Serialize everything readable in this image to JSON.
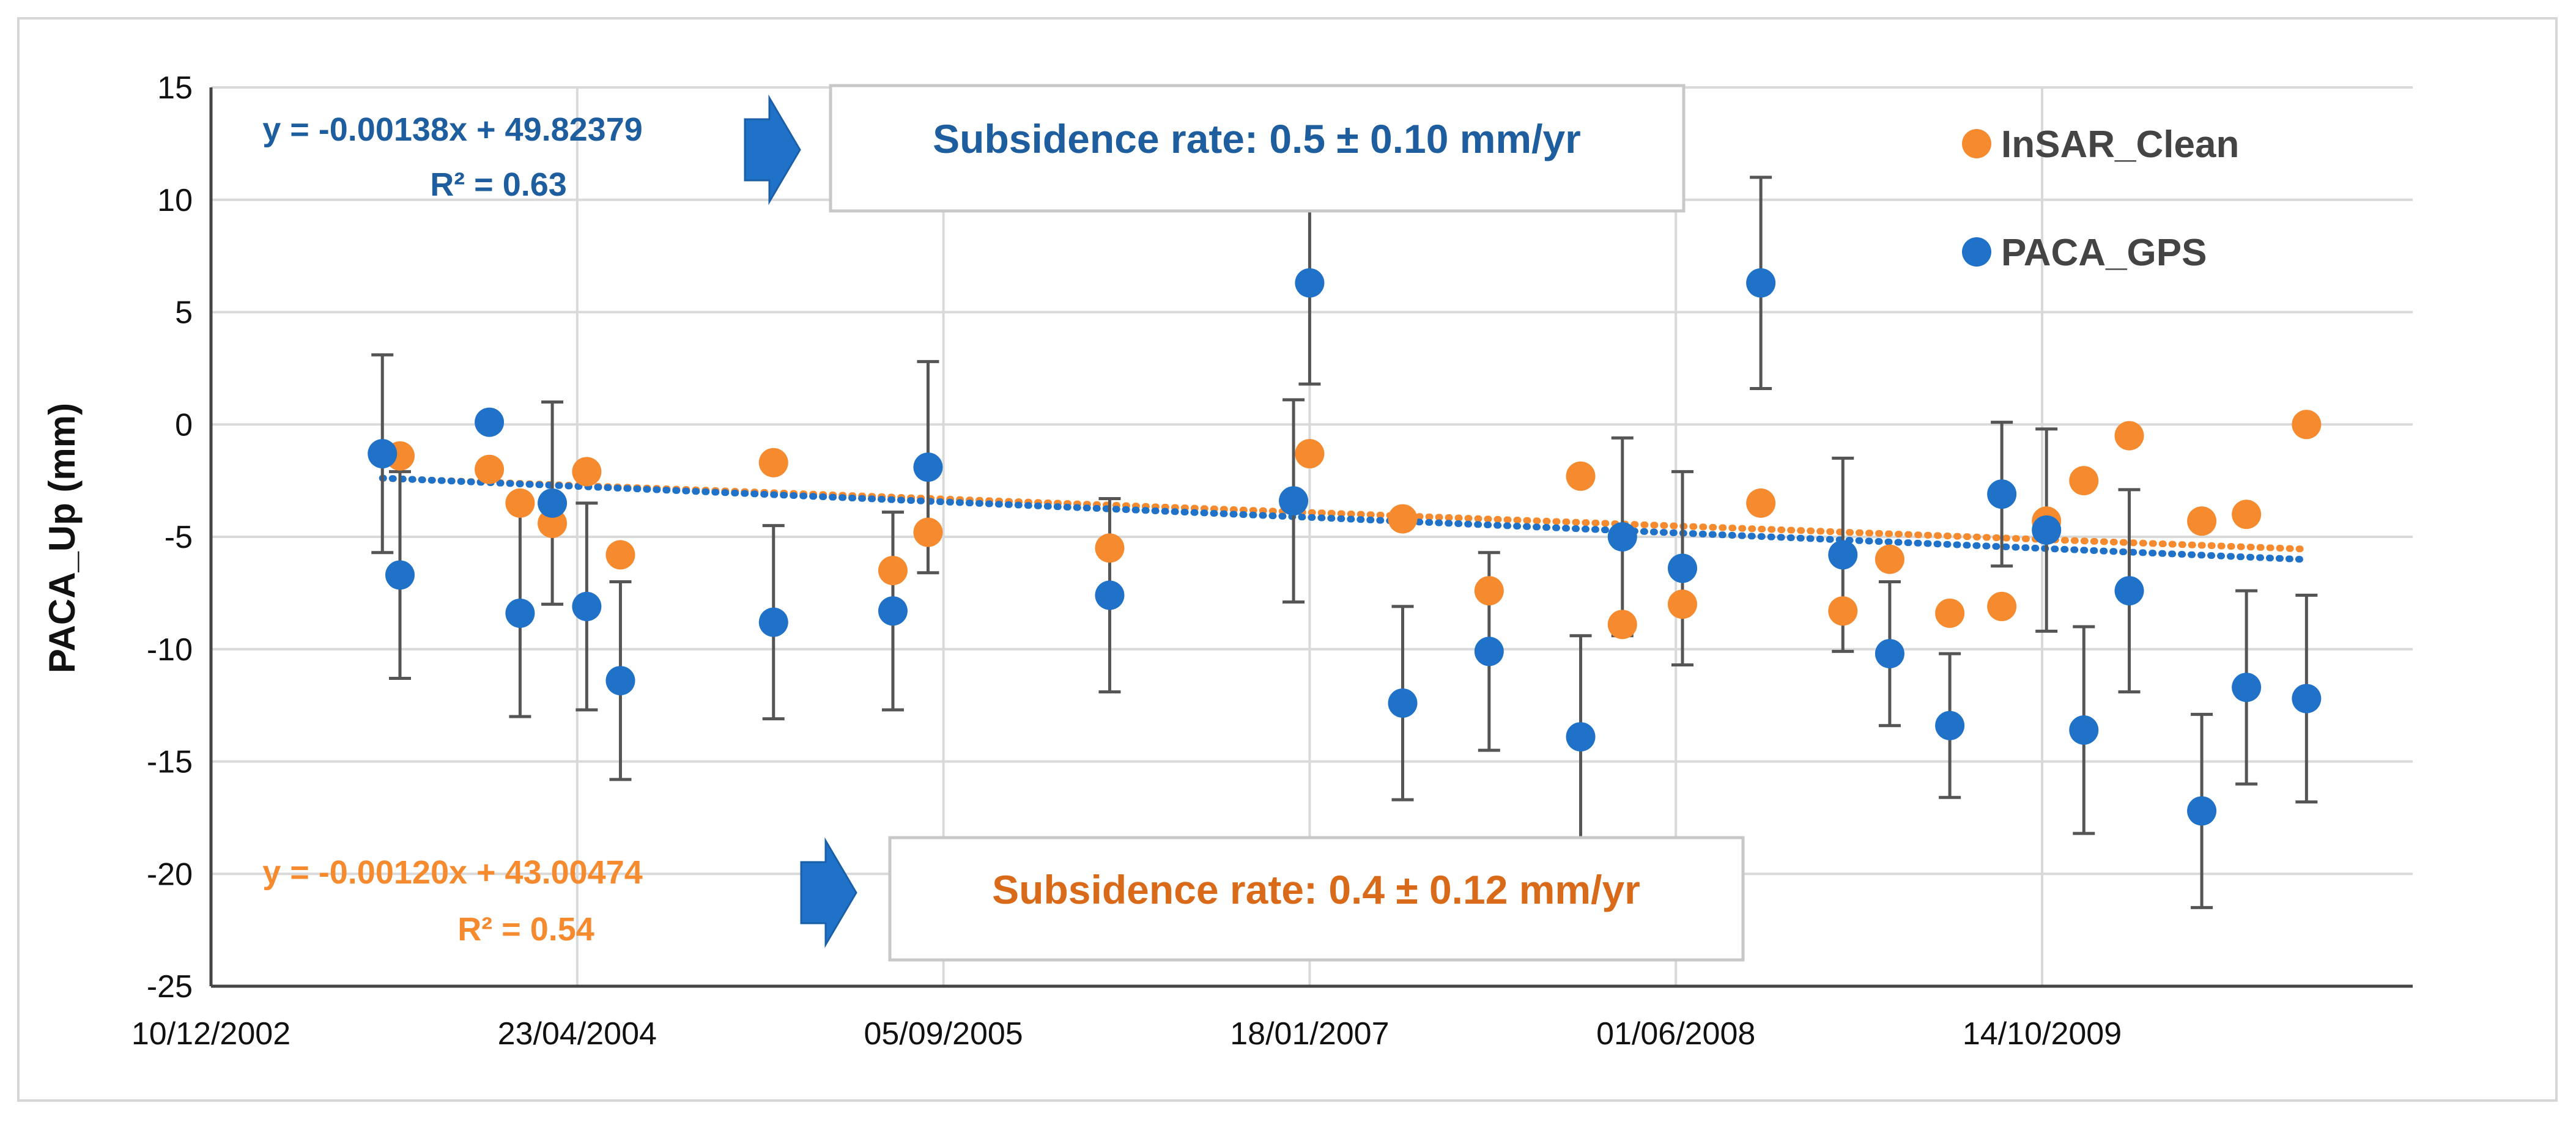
{
  "chart_data": {
    "type": "scatter",
    "ylabel": "PACA_Up (mm)",
    "xlabel": "",
    "ylim": [
      -25,
      15
    ],
    "yticks": [
      15,
      10,
      5,
      0,
      -5,
      -10,
      -15,
      -20,
      -25
    ],
    "xticks": [
      "10/12/2002",
      "23/04/2004",
      "05/09/2005",
      "18/01/2007",
      "01/06/2008",
      "14/10/2009"
    ],
    "xrange": [
      "10/12/2002",
      "04/03/2011"
    ],
    "grid": true,
    "legend_position": "top-right",
    "colors": {
      "insar": "#F58A2F",
      "gps": "#1F72C8",
      "errorbar": "#555555",
      "arrow": "#1F72C8"
    },
    "series": [
      {
        "name": "InSAR_Clean",
        "color": "#F58A2F",
        "points": [
          {
            "x": "25/08/2003",
            "y": -1.4
          },
          {
            "x": "25/12/2003",
            "y": -2.0
          },
          {
            "x": "05/02/2004",
            "y": -3.5
          },
          {
            "x": "20/03/2004",
            "y": -4.4
          },
          {
            "x": "06/05/2004",
            "y": -2.1
          },
          {
            "x": "21/06/2004",
            "y": -5.8
          },
          {
            "x": "16/01/2005",
            "y": -1.7
          },
          {
            "x": "28/06/2005",
            "y": -6.5
          },
          {
            "x": "15/08/2005",
            "y": -4.8
          },
          {
            "x": "20/04/2006",
            "y": -5.5
          },
          {
            "x": "18/01/2007",
            "y": -1.3
          },
          {
            "x": "25/05/2007",
            "y": -4.2
          },
          {
            "x": "20/09/2007",
            "y": -7.4
          },
          {
            "x": "23/01/2008",
            "y": -2.3
          },
          {
            "x": "20/03/2008",
            "y": -8.9
          },
          {
            "x": "10/06/2008",
            "y": -8.0
          },
          {
            "x": "25/09/2008",
            "y": -3.5
          },
          {
            "x": "15/01/2009",
            "y": -8.3
          },
          {
            "x": "20/03/2009",
            "y": -6.0
          },
          {
            "x": "10/06/2009",
            "y": -8.4
          },
          {
            "x": "20/08/2009",
            "y": -8.1
          },
          {
            "x": "20/10/2009",
            "y": -4.3
          },
          {
            "x": "10/12/2009",
            "y": -2.5
          },
          {
            "x": "10/02/2010",
            "y": -0.5
          },
          {
            "x": "20/05/2010",
            "y": -4.3
          },
          {
            "x": "20/07/2010",
            "y": -4.0
          },
          {
            "x": "10/10/2010",
            "y": 0.0
          }
        ],
        "trendline": {
          "equation": "y = -0.00120x + 43.00474",
          "r2": "R² = 0.54",
          "slope": -0.0012,
          "intercept": 43.00474,
          "x_from": "01/08/2003",
          "x_to": "10/10/2010"
        },
        "annotation": "Subsidence rate: 0.4 ± 0.12 mm/yr"
      },
      {
        "name": "PACA_GPS",
        "color": "#1F72C8",
        "points": [
          {
            "x": "01/08/2003",
            "y": -1.3,
            "err": 4.4
          },
          {
            "x": "25/08/2003",
            "y": -6.7,
            "err": 4.6
          },
          {
            "x": "25/12/2003",
            "y": 0.1
          },
          {
            "x": "05/02/2004",
            "y": -8.4,
            "err": 4.6
          },
          {
            "x": "20/03/2004",
            "y": -3.5,
            "err": 4.5
          },
          {
            "x": "06/05/2004",
            "y": -8.1,
            "err": 4.6
          },
          {
            "x": "21/06/2004",
            "y": -11.4,
            "err": 4.4
          },
          {
            "x": "16/01/2005",
            "y": -8.8,
            "err": 4.3
          },
          {
            "x": "28/06/2005",
            "y": -8.3,
            "err": 4.4
          },
          {
            "x": "15/08/2005",
            "y": -1.9,
            "err": 4.7
          },
          {
            "x": "20/04/2006",
            "y": -7.6,
            "err": 4.3
          },
          {
            "x": "27/12/2006",
            "y": -3.4,
            "err": 4.5
          },
          {
            "x": "18/01/2007",
            "y": 6.3,
            "err": 4.5
          },
          {
            "x": "25/05/2007",
            "y": -12.4,
            "err": 4.3
          },
          {
            "x": "20/09/2007",
            "y": -10.1,
            "err": 4.4
          },
          {
            "x": "23/01/2008",
            "y": -13.9,
            "err": 4.5
          },
          {
            "x": "20/03/2008",
            "y": -5.0,
            "err": 4.4
          },
          {
            "x": "10/06/2008",
            "y": -6.4,
            "err": 4.3
          },
          {
            "x": "25/09/2008",
            "y": 6.3,
            "err": 4.7
          },
          {
            "x": "15/01/2009",
            "y": -5.8,
            "err": 4.3
          },
          {
            "x": "20/03/2009",
            "y": -10.2,
            "err": 3.2
          },
          {
            "x": "10/06/2009",
            "y": -13.4,
            "err": 3.2
          },
          {
            "x": "20/08/2009",
            "y": -3.1,
            "err": 3.2
          },
          {
            "x": "20/10/2009",
            "y": -4.7,
            "err": 4.5
          },
          {
            "x": "10/12/2009",
            "y": -13.6,
            "err": 4.6
          },
          {
            "x": "10/02/2010",
            "y": -7.4,
            "err": 4.5
          },
          {
            "x": "20/05/2010",
            "y": -17.2,
            "err": 4.3
          },
          {
            "x": "20/07/2010",
            "y": -11.7,
            "err": 4.3
          },
          {
            "x": "10/10/2010",
            "y": -12.2,
            "err": 4.6
          }
        ],
        "trendline": {
          "equation": "y = -0.00138x + 49.82379",
          "r2": "R² = 0.63",
          "slope": -0.00138,
          "intercept": 49.82379,
          "x_from": "01/08/2003",
          "x_to": "10/10/2010"
        },
        "annotation": "Subsidence rate: 0.5 ± 0.10 mm/yr"
      }
    ]
  }
}
